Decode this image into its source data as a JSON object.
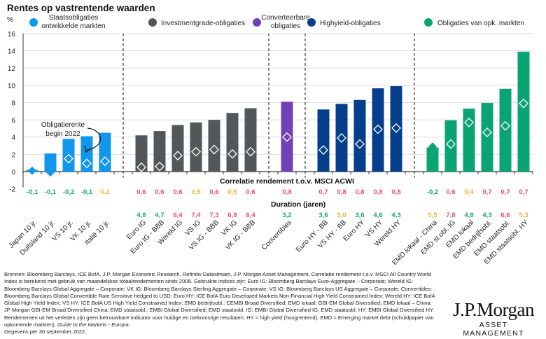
{
  "chart_data": {
    "type": "bar",
    "title": "Rentes op vastrentende waarden",
    "ylabel": "%",
    "ylim": [
      -2,
      16
    ],
    "yticks": [
      -2,
      0,
      2,
      4,
      6,
      8,
      10,
      12,
      14,
      16
    ],
    "grid": true,
    "legend": [
      {
        "name": "Staatsobligaties ontwikkelde markten",
        "lines": [
          "Staatsobligaties",
          "ontwikkelde markten"
        ],
        "color": "#1196ee"
      },
      {
        "name": "Investmentgrade-obligaties",
        "lines": [
          "Investmentgrade-obligaties"
        ],
        "color": "#53575a"
      },
      {
        "name": "Converteerbare obligaties",
        "lines": [
          "Converteerbare",
          "obligaties"
        ],
        "color": "#6f42b8"
      },
      {
        "name": "Highyield-obligaties",
        "lines": [
          "Highyield-obligaties"
        ],
        "color": "#053f8b"
      },
      {
        "name": "Obligaties van opk. markten",
        "lines": [
          "Obligaties van opk. markten"
        ],
        "color": "#0aa372"
      }
    ],
    "groups": [
      {
        "legend_index": 0,
        "categories": [
          "Japan 10 jr.",
          "Duitsland 10 jr.",
          "VS 10 jr.",
          "VK 10 jr.",
          "Italië 10 jr."
        ],
        "current_yield": [
          0.2,
          2.1,
          3.8,
          4.1,
          4.5
        ],
        "yield_start_2022": [
          0.1,
          -0.1,
          1.5,
          0.95,
          1.2
        ],
        "correlation": [
          "-0,1",
          "-0,1",
          "-0,2",
          "-0,1",
          "0,2"
        ],
        "duration": [
          "",
          "",
          "",
          "",
          ""
        ]
      },
      {
        "legend_index": 1,
        "categories": [
          "Euro IG",
          "Euro IG - BBB",
          "Wereld IG",
          "VS IG",
          "VS IG - BBB",
          "VK IG",
          "VK IG - BBB"
        ],
        "current_yield": [
          4.2,
          4.7,
          5.4,
          5.7,
          6.0,
          6.8,
          7.35
        ],
        "yield_start_2022": [
          0.5,
          0.6,
          1.85,
          2.3,
          2.55,
          2.05,
          2.3
        ],
        "correlation": [
          "0,6",
          "0,6",
          "0,6",
          "0,5",
          "0,6",
          "0,5",
          "0,6"
        ],
        "duration": [
          "4,8",
          "4,7",
          "6,4",
          "7,4",
          "7,3",
          "6,8",
          "6,4"
        ]
      },
      {
        "legend_index": 2,
        "categories": [
          "Convertibles"
        ],
        "current_yield": [
          8.1
        ],
        "yield_start_2022": [
          4.0
        ],
        "correlation": [
          "0,8"
        ],
        "duration": [
          "3,2"
        ]
      },
      {
        "legend_index": 3,
        "categories": [
          "Euro HY - BB",
          "VS HY - BB",
          "Euro HY",
          "VS HY",
          "Wereld HY"
        ],
        "current_yield": [
          7.2,
          7.85,
          8.3,
          9.65,
          9.9
        ],
        "yield_start_2022": [
          2.5,
          3.9,
          3.2,
          4.9,
          5.05
        ],
        "correlation": [
          "0,7",
          "0,8",
          "0,8",
          "0,8",
          "0,8"
        ],
        "duration": [
          "3,6",
          "5,0",
          "3,6",
          "4,6",
          "4,3"
        ]
      },
      {
        "legend_index": 4,
        "categories": [
          "EMD lokaal - China",
          "EMD st.obl. IG",
          "EMD lokaal",
          "EMD bedrijfsobl.",
          "EMD staatsobl.",
          "EMD staatsobl. HY"
        ],
        "current_yield": [
          2.8,
          5.95,
          7.3,
          7.95,
          9.6,
          13.9
        ],
        "yield_start_2022": [
          2.9,
          3.2,
          5.7,
          4.55,
          5.3,
          7.9
        ],
        "correlation": [
          "-0,2",
          "0,6",
          "0,4",
          "0,7",
          "0,7",
          "0,7"
        ],
        "duration": [
          "5,5",
          "7,8",
          "4,8",
          "4,3",
          "6,6",
          "5,3"
        ]
      }
    ],
    "annotation": "Obligatierente begin 2022",
    "annotation_lines": [
      "Obligatierente",
      "begin 2022"
    ],
    "correlation_header": "Correlatie rendement t.o.v. MSCI ACWI",
    "duration_header": "Duration (jaren)",
    "value_colors": {
      "low": "#1aa36f",
      "mid": "#f5b040",
      "high": "#f0525a"
    }
  },
  "footnote": {
    "text": "Bronnen: Bloomberg Barclays, ICE BofA, J.P. Morgan Economic Research, Refinitiv Datastream, J.P. Morgan Asset Management. Correlatie rendement t.o.v. MSCI All Country World Index is berekend met gebruik van maandelijkse totaalrendementen sinds 2008. Gebruikte indices zijn: Euro IG: Bloomberg Barclays Euro-Aggregate – Corporate; Wereld IG: Bloomberg Barclays Global Aggregate – Corporate; VK IG: Bloomberg Barclays Sterling Aggregate – Corporate; VS IG: Bloomberg Barclays US Aggregate – Corporate; Convertibles: Bloomberg Barclays Global Convertible Rate Sensitive hedged to USD; Euro HY: ICE BofA Euro Developed Markets Non-Financial High Yield Constrained Index; Wereld HY: ICE BofA Global High Yield Index; VS HY: ICE BofA US High Yield Constrained Index; EMD bedrijfsobl.: CEMBI Broad Diversified; EMD lokaal: GBI-EM Global Diversified; EMD lokaal – China: JP Morgan GBI-EM Broad Diversified China; EMD staatsobl.: EMBI Global Diversified; EMD staatsobl. IG: EMBI Global Diversified IG; EMD staatsobl. HY: EMBI Global Diversified HY. Rendementen uit het verleden zijn geen betrouwbare indicator voor huidige en toekomstige resultaten. HY = high yield (hoogrentend); EMD = Emerging market debt (schuldpapier van opkomende markten). ",
    "guide": "Guide to the Markets - Europa.",
    "date": "Gegevens per 30 september 2022."
  },
  "logo": {
    "line1": "J.P.Morgan",
    "line2": "ASSET MANAGEMENT"
  }
}
